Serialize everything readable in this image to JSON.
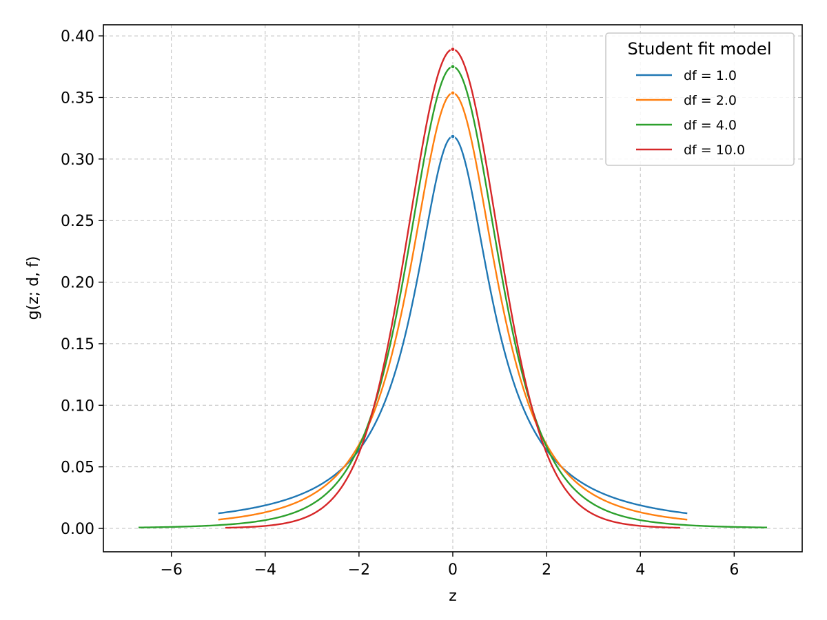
{
  "chart_data": {
    "type": "line",
    "title": "",
    "xlabel": "z",
    "ylabel": "g(z; d, f)",
    "xlim": [
      -7.45,
      7.45
    ],
    "ylim": [
      -0.019,
      0.409
    ],
    "xticks": [
      -6,
      -4,
      -2,
      0,
      2,
      4,
      6
    ],
    "xtick_labels": [
      "−6",
      "−4",
      "−2",
      "0",
      "2",
      "4",
      "6"
    ],
    "yticks": [
      0.0,
      0.05,
      0.1,
      0.15,
      0.2,
      0.25,
      0.3,
      0.35,
      0.4
    ],
    "ytick_labels": [
      "0.00",
      "0.05",
      "0.10",
      "0.15",
      "0.20",
      "0.25",
      "0.30",
      "0.35",
      "0.40"
    ],
    "grid": true,
    "legend": {
      "title": "Student fit model",
      "placement": "top-right"
    },
    "series": [
      {
        "name": "df = 1.0",
        "df": 1.0,
        "x_range": [
          -5.0,
          5.0
        ],
        "peak": 0.3183,
        "color": "#1f77b4"
      },
      {
        "name": "df = 2.0",
        "df": 2.0,
        "x_range": [
          -5.0,
          5.0
        ],
        "peak": 0.3536,
        "color": "#ff7f0e"
      },
      {
        "name": "df = 4.0",
        "df": 4.0,
        "x_range": [
          -6.7,
          6.7
        ],
        "peak": 0.375,
        "color": "#2ca02c"
      },
      {
        "name": "df = 10.0",
        "df": 10.0,
        "x_range": [
          -4.85,
          4.85
        ],
        "peak": 0.3891,
        "color": "#d62728"
      }
    ]
  }
}
